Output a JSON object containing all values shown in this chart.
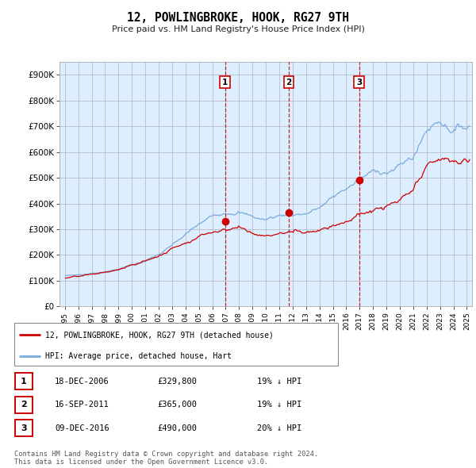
{
  "title": "12, POWLINGBROKE, HOOK, RG27 9TH",
  "subtitle": "Price paid vs. HM Land Registry's House Price Index (HPI)",
  "hpi_label": "HPI: Average price, detached house, Hart",
  "price_label": "12, POWLINGBROKE, HOOK, RG27 9TH (detached house)",
  "hpi_color": "#7aaadd",
  "price_color": "#cc0000",
  "bg_color": "#ddeeff",
  "plot_bg": "#ffffff",
  "grid_color": "#bbbbcc",
  "transactions": [
    {
      "num": 1,
      "date": "18-DEC-2006",
      "price": 329800,
      "pct": "19%",
      "dir": "↓"
    },
    {
      "num": 2,
      "date": "16-SEP-2011",
      "price": 365000,
      "pct": "19%",
      "dir": "↓"
    },
    {
      "num": 3,
      "date": "09-DEC-2016",
      "price": 490000,
      "pct": "20%",
      "dir": "↓"
    }
  ],
  "footer": "Contains HM Land Registry data © Crown copyright and database right 2024.\nThis data is licensed under the Open Government Licence v3.0.",
  "ylim": [
    0,
    950000
  ],
  "yticks": [
    0,
    100000,
    200000,
    300000,
    400000,
    500000,
    600000,
    700000,
    800000,
    900000
  ]
}
